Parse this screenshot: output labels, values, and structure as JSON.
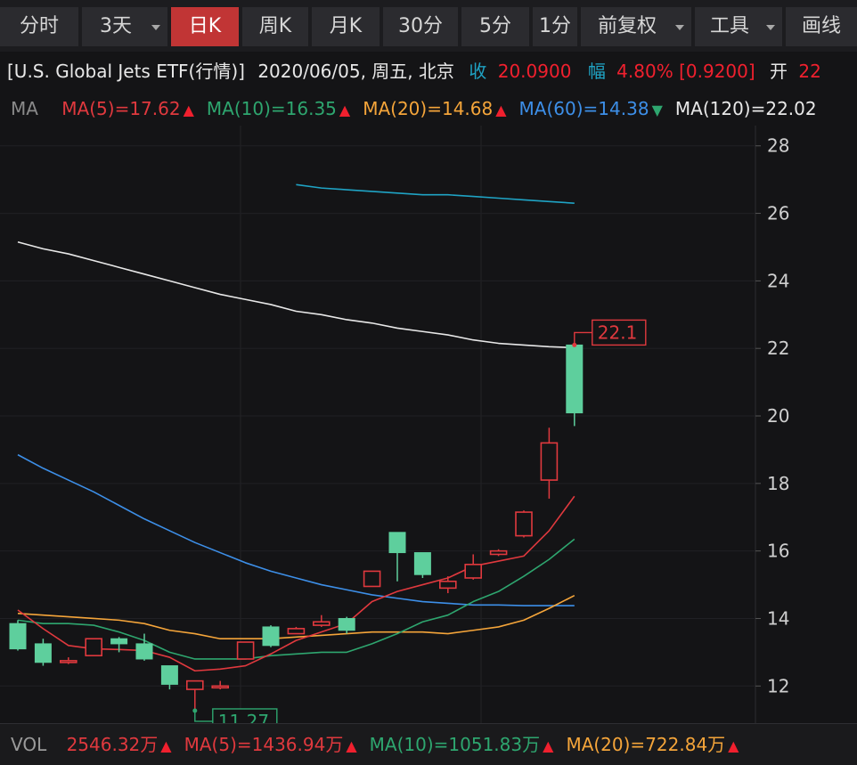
{
  "toolbar": {
    "tabs": [
      {
        "label": "分时",
        "active": false,
        "dropdown": false
      },
      {
        "label": "3天",
        "active": false,
        "dropdown": true
      },
      {
        "label": "日K",
        "active": true,
        "dropdown": false
      },
      {
        "label": "周K",
        "active": false,
        "dropdown": false
      },
      {
        "label": "月K",
        "active": false,
        "dropdown": false
      },
      {
        "label": "30分",
        "active": false,
        "dropdown": false
      },
      {
        "label": "5分",
        "active": false,
        "dropdown": false
      },
      {
        "label": "1分",
        "active": false,
        "dropdown": false
      },
      {
        "label": "前复权",
        "active": false,
        "dropdown": true
      },
      {
        "label": "工具",
        "active": false,
        "dropdown": true
      },
      {
        "label": "画线",
        "active": false,
        "dropdown": false
      }
    ]
  },
  "info": {
    "name": "[U.S. Global Jets ETF(行情)]",
    "date": "2020/06/05, 周五, 北京",
    "close_label": "收",
    "close_value": "20.0900",
    "change_label": "幅",
    "change_pct": "4.80%",
    "change_abs": "[0.9200]",
    "open_label": "开",
    "open_value": "22"
  },
  "ma_legend": {
    "label": "MA",
    "items": [
      {
        "text": "MA(5)=17.62",
        "color": "#e0393e",
        "arrow": "up"
      },
      {
        "text": "MA(10)=16.35",
        "color": "#2ea66f",
        "arrow": "up"
      },
      {
        "text": "MA(20)=14.68",
        "color": "#f5a53a",
        "arrow": "up"
      },
      {
        "text": "MA(60)=14.38",
        "color": "#3d8fe8",
        "arrow": "down"
      },
      {
        "text": "MA(120)=22.02",
        "color": "#e8e8e8",
        "arrow": "none"
      }
    ]
  },
  "vol_legend": {
    "label": "VOL",
    "items": [
      {
        "text": "2546.32万",
        "color": "#e0393e",
        "arrow": "up"
      },
      {
        "text": "MA(5)=1436.94万",
        "color": "#e0393e",
        "arrow": "up"
      },
      {
        "text": "MA(10)=1051.83万",
        "color": "#2ea66f",
        "arrow": "up"
      },
      {
        "text": "MA(20)=722.84万",
        "color": "#f5a53a",
        "arrow": "up"
      }
    ]
  },
  "chart_data": {
    "type": "candlestick",
    "ylim": [
      10.9,
      28.6
    ],
    "y_ticks": [
      12,
      14,
      16,
      18,
      20,
      22,
      24,
      26,
      28
    ],
    "grid": true,
    "colors": {
      "up": "#e0393e",
      "down": "#5ecf9d",
      "ma5": "#e0393e",
      "ma10": "#2ea66f",
      "ma20": "#f5a53a",
      "ma60": "#3d8fe8",
      "ma120": "#e8e8e8",
      "ma_long": "#1fa3c4"
    },
    "candles": [
      {
        "o": 13.85,
        "h": 13.95,
        "c": 13.1,
        "l": 13.05
      },
      {
        "o": 13.25,
        "h": 13.4,
        "c": 12.7,
        "l": 12.6
      },
      {
        "o": 12.7,
        "h": 12.85,
        "c": 12.75,
        "l": 12.65
      },
      {
        "o": 12.9,
        "h": 13.4,
        "c": 13.4,
        "l": 12.9
      },
      {
        "o": 13.4,
        "h": 13.45,
        "c": 13.25,
        "l": 13.0
      },
      {
        "o": 13.25,
        "h": 13.55,
        "c": 12.8,
        "l": 12.75
      },
      {
        "o": 12.6,
        "h": 12.6,
        "c": 12.05,
        "l": 11.9
      },
      {
        "o": 11.9,
        "h": 12.1,
        "c": 12.15,
        "l": 11.27
      },
      {
        "o": 12.0,
        "h": 12.15,
        "c": 12.0,
        "l": 11.9
      },
      {
        "o": 12.8,
        "h": 13.3,
        "c": 13.3,
        "l": 12.8
      },
      {
        "o": 13.75,
        "h": 13.8,
        "c": 13.2,
        "l": 13.15
      },
      {
        "o": 13.55,
        "h": 13.75,
        "c": 13.7,
        "l": 13.55
      },
      {
        "o": 13.8,
        "h": 14.1,
        "c": 13.9,
        "l": 13.75
      },
      {
        "o": 14.0,
        "h": 14.05,
        "c": 13.65,
        "l": 13.55
      },
      {
        "o": 14.95,
        "h": 15.4,
        "c": 15.4,
        "l": 14.95
      },
      {
        "o": 16.55,
        "h": 16.55,
        "c": 15.95,
        "l": 15.1
      },
      {
        "o": 15.95,
        "h": 15.95,
        "c": 15.3,
        "l": 15.2
      },
      {
        "o": 14.9,
        "h": 15.25,
        "c": 15.1,
        "l": 14.75
      },
      {
        "o": 15.2,
        "h": 15.9,
        "c": 15.6,
        "l": 15.15
      },
      {
        "o": 15.9,
        "h": 16.05,
        "c": 16.0,
        "l": 15.85
      },
      {
        "o": 16.45,
        "h": 17.2,
        "c": 17.15,
        "l": 16.4
      },
      {
        "o": 18.1,
        "h": 19.65,
        "c": 19.2,
        "l": 17.55
      },
      {
        "o": 22.1,
        "h": 22.1,
        "c": 20.09,
        "l": 19.7
      }
    ],
    "ma5": [
      14.25,
      13.7,
      13.2,
      13.1,
      13.08,
      13.05,
      12.85,
      12.45,
      12.5,
      12.6,
      12.95,
      13.35,
      13.6,
      13.85,
      14.5,
      14.8,
      15.0,
      15.2,
      15.55,
      15.7,
      15.85,
      16.6,
      17.62
    ],
    "ma10": [
      13.95,
      13.85,
      13.85,
      13.8,
      13.6,
      13.35,
      13.0,
      12.8,
      12.8,
      12.8,
      12.9,
      12.95,
      13.0,
      13.0,
      13.25,
      13.55,
      13.9,
      14.1,
      14.5,
      14.8,
      15.25,
      15.75,
      16.35
    ],
    "ma20": [
      14.15,
      14.1,
      14.05,
      14.0,
      13.95,
      13.85,
      13.65,
      13.55,
      13.4,
      13.4,
      13.4,
      13.45,
      13.5,
      13.55,
      13.6,
      13.6,
      13.6,
      13.55,
      13.65,
      13.75,
      13.95,
      14.3,
      14.68
    ],
    "ma60": [
      18.85,
      18.45,
      18.1,
      17.75,
      17.35,
      16.95,
      16.6,
      16.25,
      15.95,
      15.65,
      15.4,
      15.2,
      15.0,
      14.85,
      14.7,
      14.6,
      14.5,
      14.45,
      14.4,
      14.4,
      14.38,
      14.38,
      14.38
    ],
    "ma120": [
      25.15,
      24.95,
      24.8,
      24.6,
      24.4,
      24.2,
      24.0,
      23.8,
      23.6,
      23.45,
      23.3,
      23.1,
      23.0,
      22.85,
      22.75,
      22.6,
      22.5,
      22.4,
      22.25,
      22.15,
      22.1,
      22.05,
      22.02
    ],
    "ma_long_start": 11,
    "ma_long": [
      26.85,
      26.75,
      26.7,
      26.65,
      26.6,
      26.55,
      26.55,
      26.5,
      26.45,
      26.4,
      26.35,
      26.3
    ],
    "annotations": [
      {
        "label": "22.1",
        "candle_index": 22,
        "value": 22.1,
        "color": "#e0393e",
        "kind": "high"
      },
      {
        "label": "11.27",
        "candle_index": 7,
        "value": 11.27,
        "color": "#2ea66f",
        "kind": "low"
      }
    ]
  }
}
